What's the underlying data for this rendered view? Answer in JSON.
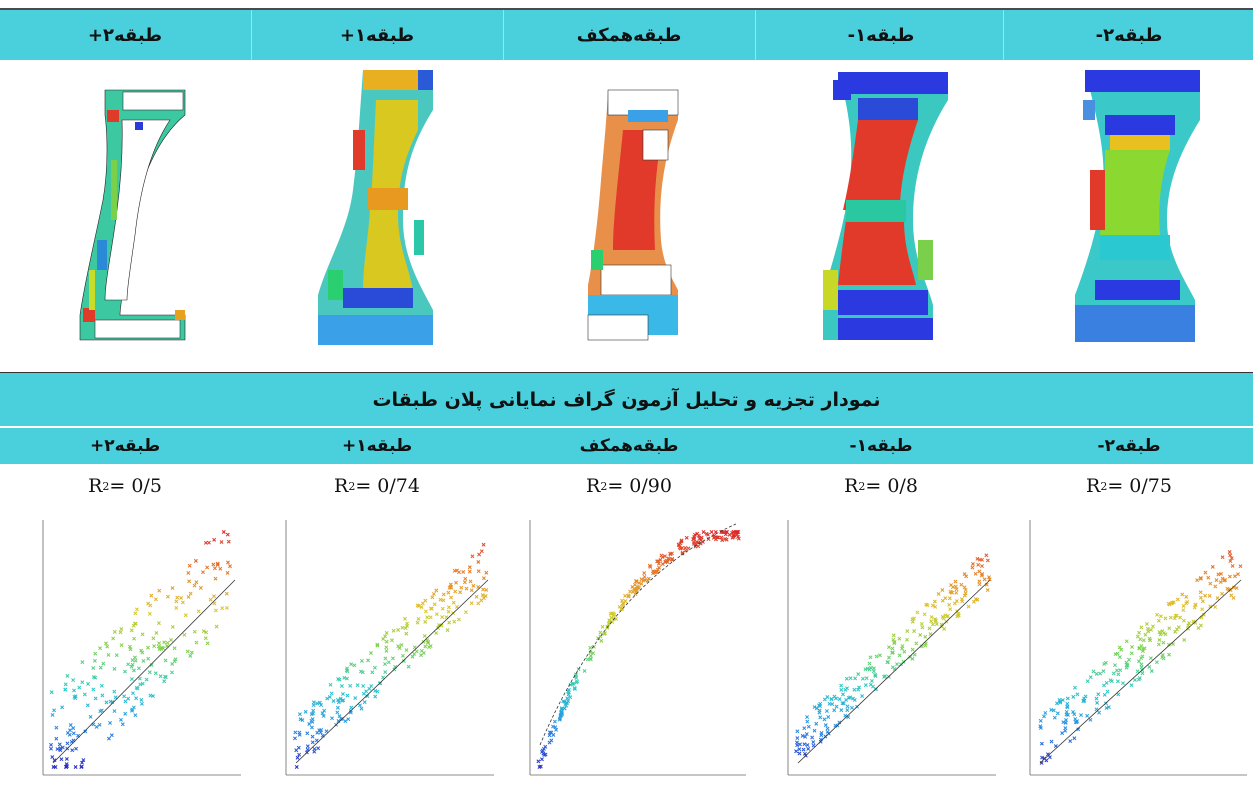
{
  "headers": [
    "طبقه۲+",
    "طبقه۱+",
    "طبقه‌همکف",
    "طبقه۱-",
    "طبقه۲-"
  ],
  "section_title": "نمودار تجزیه و تحلیل آزمون گراف نمایانی پلان طبقات",
  "r2": [
    {
      "prefix": "R",
      "sup": "2",
      "value": "= 0/5"
    },
    {
      "prefix": "R",
      "sup": "2",
      "value": "= 0/74"
    },
    {
      "prefix": "R",
      "sup": "2",
      "value": "= 0/90"
    },
    {
      "prefix": "R",
      "sup": "2",
      "value": "= 0/8"
    },
    {
      "prefix": "R",
      "sup": "2",
      "value": "= 0/75"
    }
  ],
  "chart_data": [
    {
      "type": "scatter",
      "r2": 0.5
    },
    {
      "type": "scatter",
      "r2": 0.74
    },
    {
      "type": "scatter",
      "r2": 0.9
    },
    {
      "type": "scatter",
      "r2": 0.8
    },
    {
      "type": "scatter",
      "r2": 0.75
    }
  ]
}
